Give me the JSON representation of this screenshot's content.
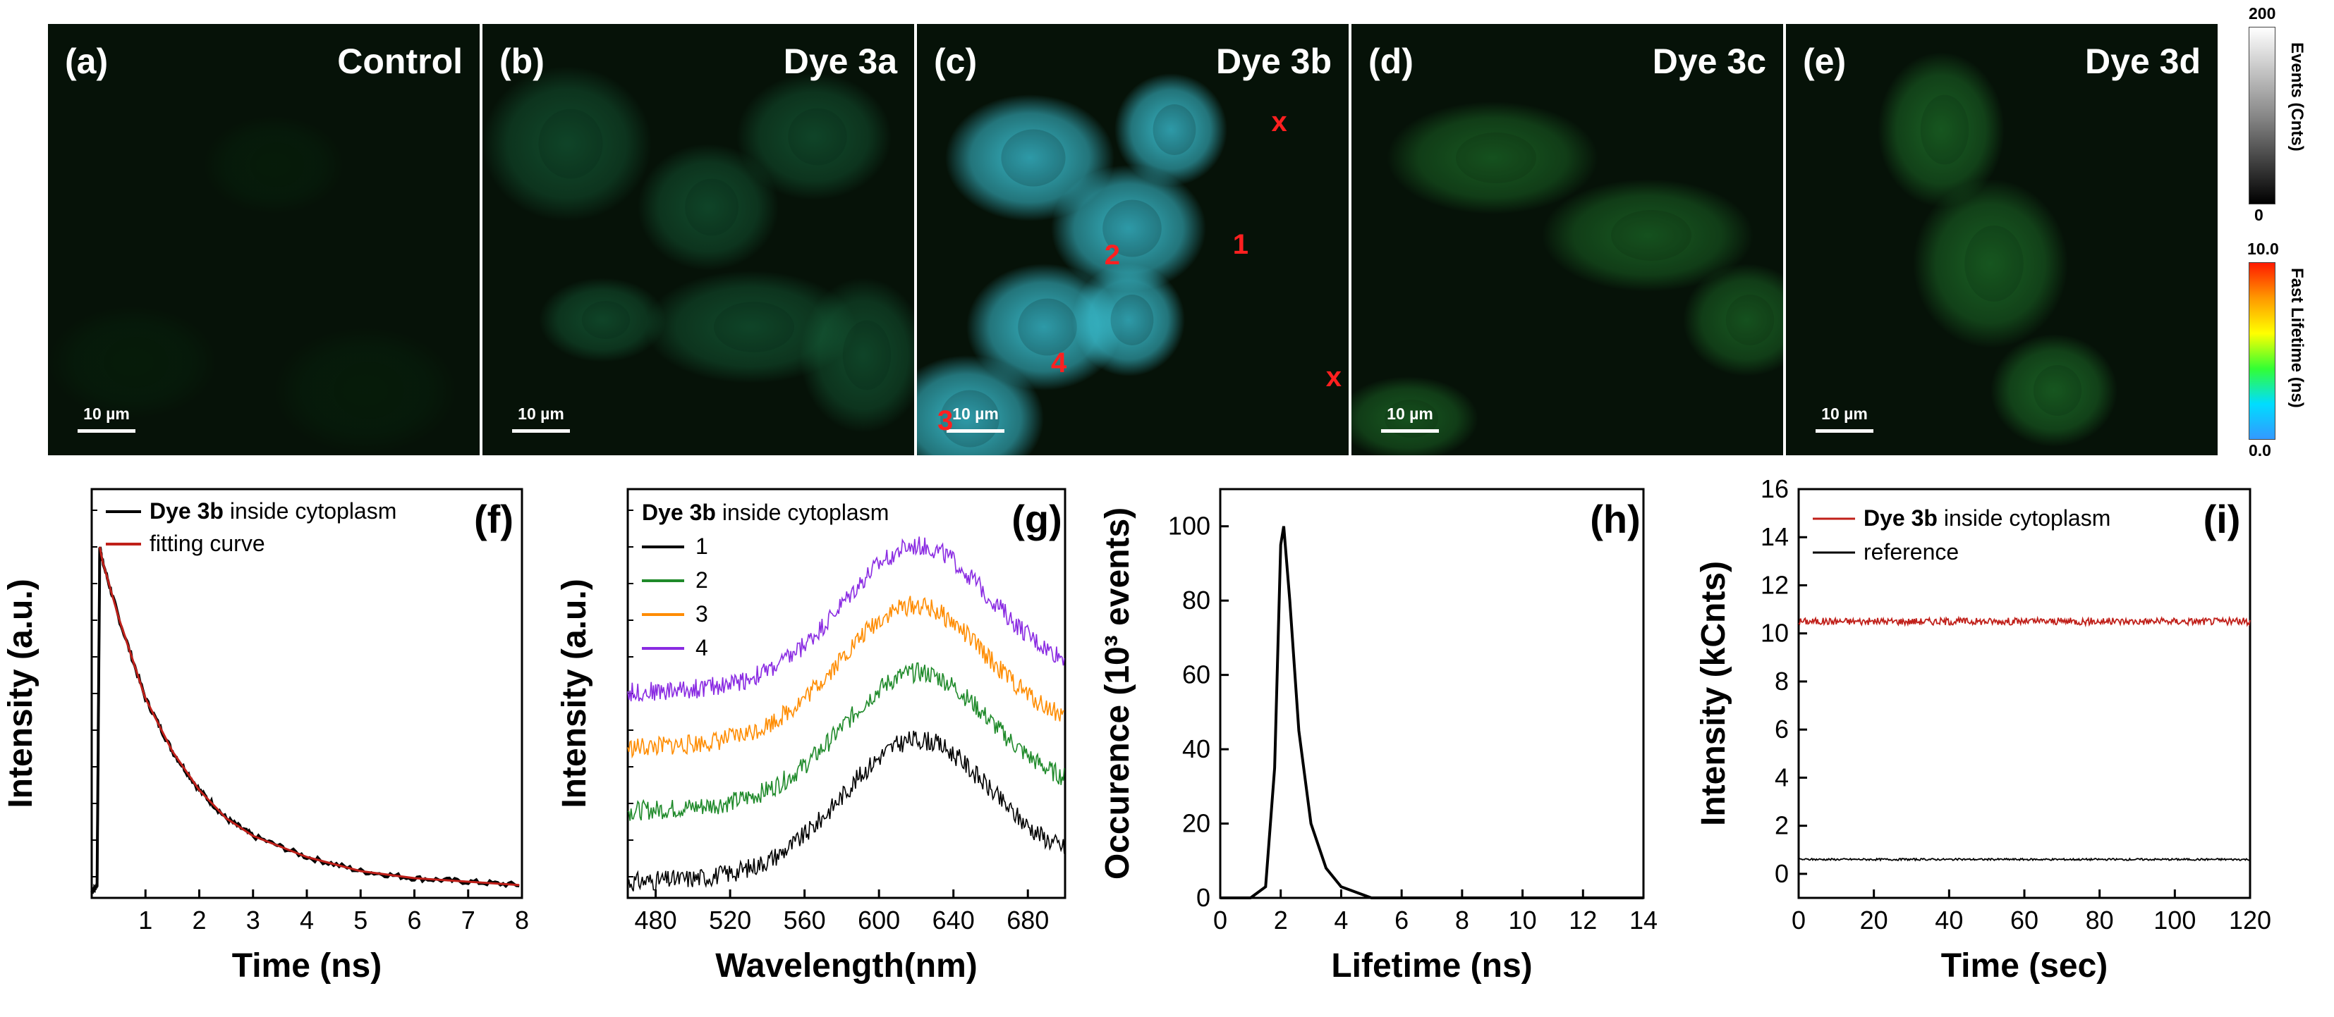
{
  "panels": [
    {
      "label": "(a)",
      "title": "Control",
      "scale": "10 µm",
      "tint": "#0a4a14",
      "intensity": 0.2,
      "cells": [
        {
          "x": 120,
          "y": 480,
          "rx": 120,
          "ry": 80
        },
        {
          "x": 450,
          "y": 520,
          "rx": 130,
          "ry": 90
        },
        {
          "x": 320,
          "y": 200,
          "rx": 100,
          "ry": 70
        }
      ]
    },
    {
      "label": "(b)",
      "title": "Dye 3a",
      "scale": "10 µm",
      "tint": "#1f8f58",
      "intensity": 0.45,
      "cells": [
        {
          "x": 120,
          "y": 170,
          "rx": 120,
          "ry": 110
        },
        {
          "x": 320,
          "y": 260,
          "rx": 100,
          "ry": 90
        },
        {
          "x": 470,
          "y": 160,
          "rx": 110,
          "ry": 90
        },
        {
          "x": 380,
          "y": 430,
          "rx": 150,
          "ry": 80
        },
        {
          "x": 540,
          "y": 470,
          "rx": 90,
          "ry": 110
        },
        {
          "x": 170,
          "y": 420,
          "rx": 90,
          "ry": 60
        }
      ]
    },
    {
      "label": "(c)",
      "title": "Dye 3b",
      "scale": "10 µm",
      "tint": "#3fd3e8",
      "intensity": 0.85,
      "cells": [
        {
          "x": 160,
          "y": 190,
          "rx": 120,
          "ry": 90
        },
        {
          "x": 300,
          "y": 290,
          "rx": 110,
          "ry": 90
        },
        {
          "x": 180,
          "y": 430,
          "rx": 110,
          "ry": 90
        },
        {
          "x": 300,
          "y": 420,
          "rx": 80,
          "ry": 80
        },
        {
          "x": 70,
          "y": 560,
          "rx": 110,
          "ry": 90
        },
        {
          "x": 360,
          "y": 150,
          "rx": 80,
          "ry": 80
        }
      ],
      "markers": [
        {
          "text": "x",
          "x": 312,
          "y": 115
        },
        {
          "text": "1",
          "x": 278,
          "y": 285
        },
        {
          "text": "2",
          "x": 165,
          "y": 300
        },
        {
          "text": "4",
          "x": 118,
          "y": 450
        },
        {
          "text": "x",
          "x": 360,
          "y": 470
        },
        {
          "text": "3",
          "x": 18,
          "y": 530
        }
      ]
    },
    {
      "label": "(d)",
      "title": "Dye 3c",
      "scale": "10 µm",
      "tint": "#2aa03a",
      "intensity": 0.5,
      "cells": [
        {
          "x": 200,
          "y": 190,
          "rx": 150,
          "ry": 80
        },
        {
          "x": 420,
          "y": 300,
          "rx": 150,
          "ry": 80
        },
        {
          "x": 560,
          "y": 420,
          "rx": 90,
          "ry": 80
        },
        {
          "x": 80,
          "y": 560,
          "rx": 100,
          "ry": 60
        }
      ]
    },
    {
      "label": "(e)",
      "title": "Dye 3d",
      "scale": "10 µm",
      "tint": "#2aa03a",
      "intensity": 0.55,
      "cells": [
        {
          "x": 220,
          "y": 150,
          "rx": 90,
          "ry": 110
        },
        {
          "x": 290,
          "y": 340,
          "rx": 110,
          "ry": 120
        },
        {
          "x": 380,
          "y": 520,
          "rx": 90,
          "ry": 80
        }
      ]
    }
  ],
  "colorbars": {
    "events": {
      "title": "Events (Cnts)",
      "max": "200",
      "min": "0"
    },
    "lifetime": {
      "title": "Fast Lifetime (ns)",
      "max": "10.0",
      "min": "0.0"
    }
  },
  "chart_data": [
    {
      "id": "f",
      "label": "(f)",
      "type": "line",
      "xlabel": "Time (ns)",
      "ylabel": "Intensity (a.u.)",
      "xlim": [
        0,
        8
      ],
      "xticks": [
        1,
        2,
        3,
        4,
        5,
        6,
        7,
        8
      ],
      "legend": [
        {
          "bold": "Dye 3b",
          "text": " inside cytoplasm",
          "color": "#000000"
        },
        {
          "bold": "",
          "text": "fitting curve",
          "color": "#c0201a"
        }
      ],
      "series": [
        {
          "name": "Dye 3b inside cytoplasm",
          "color": "#000000",
          "x": [
            0,
            0.1,
            0.15,
            0.2,
            0.5,
            1,
            1.5,
            2,
            2.5,
            3,
            4,
            5,
            6,
            7,
            8
          ],
          "y": [
            0,
            0.02,
            0.98,
            0.94,
            0.78,
            0.55,
            0.4,
            0.29,
            0.21,
            0.16,
            0.1,
            0.06,
            0.04,
            0.03,
            0.02
          ]
        },
        {
          "name": "fitting curve",
          "color": "#c0201a",
          "x": [
            0.15,
            0.2,
            0.5,
            1,
            1.5,
            2,
            2.5,
            3,
            4,
            5,
            6,
            7,
            8
          ],
          "y": [
            0.98,
            0.94,
            0.78,
            0.55,
            0.4,
            0.29,
            0.21,
            0.16,
            0.1,
            0.06,
            0.04,
            0.03,
            0.02
          ]
        }
      ]
    },
    {
      "id": "g",
      "label": "(g)",
      "type": "line",
      "xlabel": "Wavelength(nm)",
      "ylabel": "Intensity (a.u.)",
      "xlim": [
        465,
        700
      ],
      "xticks": [
        480,
        520,
        560,
        600,
        640,
        680
      ],
      "legend_title_bold": "Dye 3b",
      "legend_title": " inside cytoplasm",
      "series": [
        {
          "name": "1",
          "color": "#000000",
          "peak": 620,
          "base": 0.04,
          "amp": 0.33
        },
        {
          "name": "2",
          "color": "#1f8a2a",
          "peak": 620,
          "base": 0.22,
          "amp": 0.32
        },
        {
          "name": "3",
          "color": "#ff8c00",
          "peak": 618,
          "base": 0.38,
          "amp": 0.33
        },
        {
          "name": "4",
          "color": "#8a2be2",
          "peak": 620,
          "base": 0.52,
          "amp": 0.34
        }
      ]
    },
    {
      "id": "h",
      "label": "(h)",
      "type": "line",
      "xlabel": "Lifetime (ns)",
      "ylabel": "Occurence (10³ events)",
      "xlim": [
        0,
        14
      ],
      "ylim": [
        0,
        110
      ],
      "xticks": [
        0,
        2,
        4,
        6,
        8,
        10,
        12,
        14
      ],
      "yticks": [
        0,
        20,
        40,
        60,
        80,
        100
      ],
      "series": [
        {
          "name": "",
          "color": "#000000",
          "x": [
            0,
            1,
            1.5,
            1.8,
            2.0,
            2.1,
            2.3,
            2.6,
            3.0,
            3.5,
            4,
            5,
            14
          ],
          "y": [
            0,
            0,
            3,
            35,
            95,
            100,
            80,
            45,
            20,
            8,
            3,
            0,
            0
          ]
        }
      ]
    },
    {
      "id": "i",
      "label": "(i)",
      "type": "line",
      "xlabel": "Time (sec)",
      "ylabel": "Intensity (kCnts)",
      "xlim": [
        0,
        120
      ],
      "ylim": [
        -1,
        16
      ],
      "xticks": [
        0,
        20,
        40,
        60,
        80,
        100,
        120
      ],
      "yticks": [
        0,
        2,
        4,
        6,
        8,
        10,
        12,
        14,
        16
      ],
      "legend": [
        {
          "bold": "Dye 3b",
          "text": " inside cytoplasm",
          "color": "#c0201a"
        },
        {
          "bold": "",
          "text": "reference",
          "color": "#000000"
        }
      ],
      "series": [
        {
          "name": "Dye 3b inside cytoplasm",
          "color": "#c0201a",
          "level": 10.5,
          "noise": 0.15
        },
        {
          "name": "reference",
          "color": "#000000",
          "level": 0.6,
          "noise": 0.04
        }
      ]
    }
  ]
}
